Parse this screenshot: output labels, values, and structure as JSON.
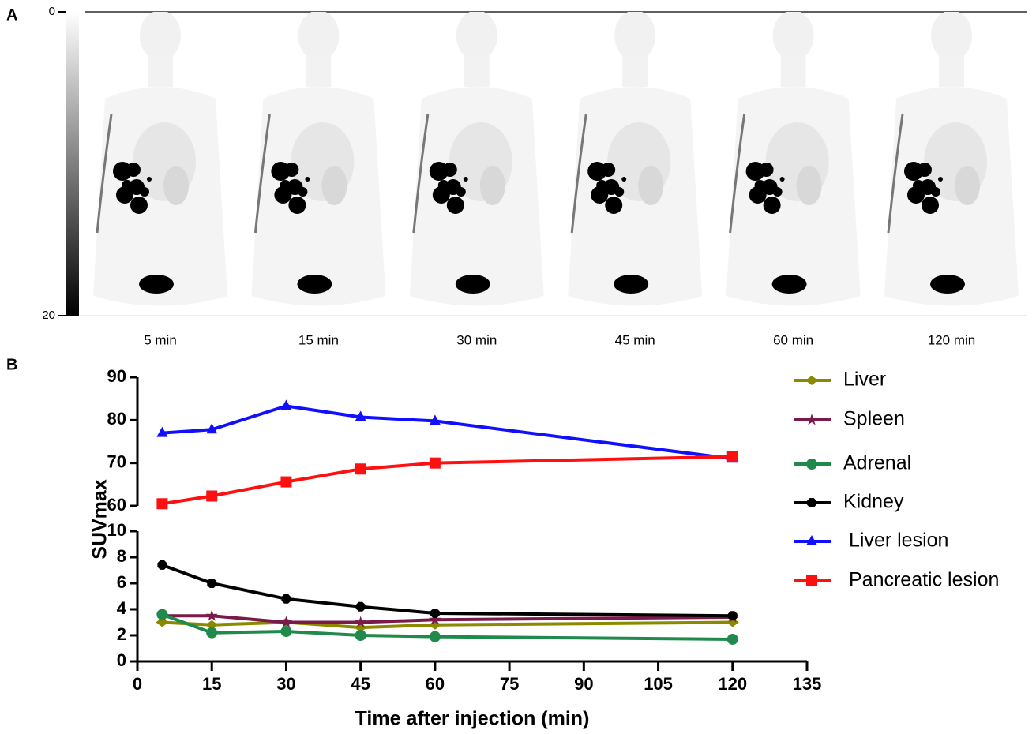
{
  "panel_a": {
    "label": "A",
    "colorbar_ticks": [
      0,
      20
    ],
    "captions": [
      "5 min",
      "15 min",
      "30 min",
      "45 min",
      "60 min",
      "120 min"
    ]
  },
  "chart_data": {
    "type": "line",
    "label": "B",
    "x_label": "Time after injection (min)",
    "y_label": "SUVmax",
    "x": [
      5,
      15,
      30,
      45,
      60,
      120
    ],
    "xlim": [
      0,
      135
    ],
    "xticks": [
      0,
      15,
      30,
      45,
      60,
      75,
      90,
      105,
      120,
      135
    ],
    "y_segments": [
      {
        "ylim": [
          0,
          10
        ],
        "yticks": [
          0,
          2,
          4,
          6,
          8,
          10
        ]
      },
      {
        "ylim": [
          60,
          90
        ],
        "yticks": [
          60,
          70,
          80,
          90
        ]
      }
    ],
    "series": [
      {
        "name": "Liver",
        "color": "#8a8a00",
        "marker": "diamond",
        "values": [
          3.0,
          2.8,
          3.0,
          2.6,
          2.8,
          3.0
        ]
      },
      {
        "name": "Spleen",
        "color": "#7a1a4a",
        "marker": "star",
        "values": [
          3.5,
          3.5,
          3.0,
          3.0,
          3.2,
          3.4
        ]
      },
      {
        "name": "Adrenal",
        "color": "#1f8a4c",
        "marker": "circle",
        "values": [
          3.6,
          2.2,
          2.3,
          2.0,
          1.9,
          1.7
        ]
      },
      {
        "name": "Kidney",
        "color": "#000000",
        "marker": "hexagon",
        "values": [
          7.4,
          6.0,
          4.8,
          4.2,
          3.7,
          3.5
        ]
      },
      {
        "name": "Liver lesion",
        "color": "#1010ff",
        "marker": "triangle",
        "values": [
          77.0,
          77.8,
          83.3,
          80.7,
          79.8,
          71.0
        ]
      },
      {
        "name": "Pancreatic lesion",
        "color": "#ff1010",
        "marker": "square",
        "values": [
          60.5,
          62.3,
          65.6,
          68.6,
          70.0,
          71.5
        ]
      }
    ]
  }
}
